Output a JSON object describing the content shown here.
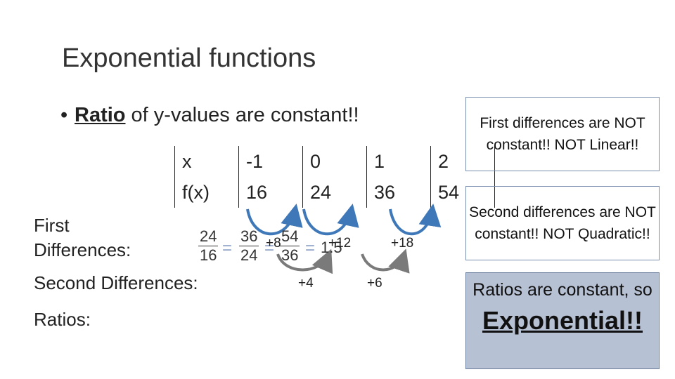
{
  "slide": {
    "title": "Exponential functions",
    "bullet_bold": "Ratio",
    "bullet_rest": " of y-values are constant!!"
  },
  "table": {
    "x_label": "x",
    "fx_label": "f(x)",
    "x_values": [
      "-1",
      "0",
      "1",
      "2"
    ],
    "fx_values": [
      "16",
      "24",
      "36",
      "54"
    ]
  },
  "row_labels": {
    "first_line1": "First",
    "first_line2": "Differences:",
    "second": "Second Differences:",
    "ratios": "Ratios:"
  },
  "first_differences": [
    "+8",
    "+12",
    "+18"
  ],
  "second_differences": [
    "+4",
    "+6"
  ],
  "ratios": {
    "fractions": [
      {
        "num": "24",
        "den": "16"
      },
      {
        "num": "36",
        "den": "24"
      },
      {
        "num": "54",
        "den": "36"
      }
    ],
    "result": "1.5",
    "equals": "="
  },
  "boxes": {
    "first": "First differences are NOT constant!! NOT Linear!!",
    "second": "Second differences are NOT constant!! NOT Quadratic!!",
    "conclusion_line": "Ratios are constant, so",
    "conclusion_word": "Exponential!!"
  },
  "colors": {
    "arrow_blue": "#3f78b8",
    "arrow_gray": "#7a7a7a",
    "box_fill": "#b7c1d4",
    "equals_color": "#8fa3c8"
  }
}
